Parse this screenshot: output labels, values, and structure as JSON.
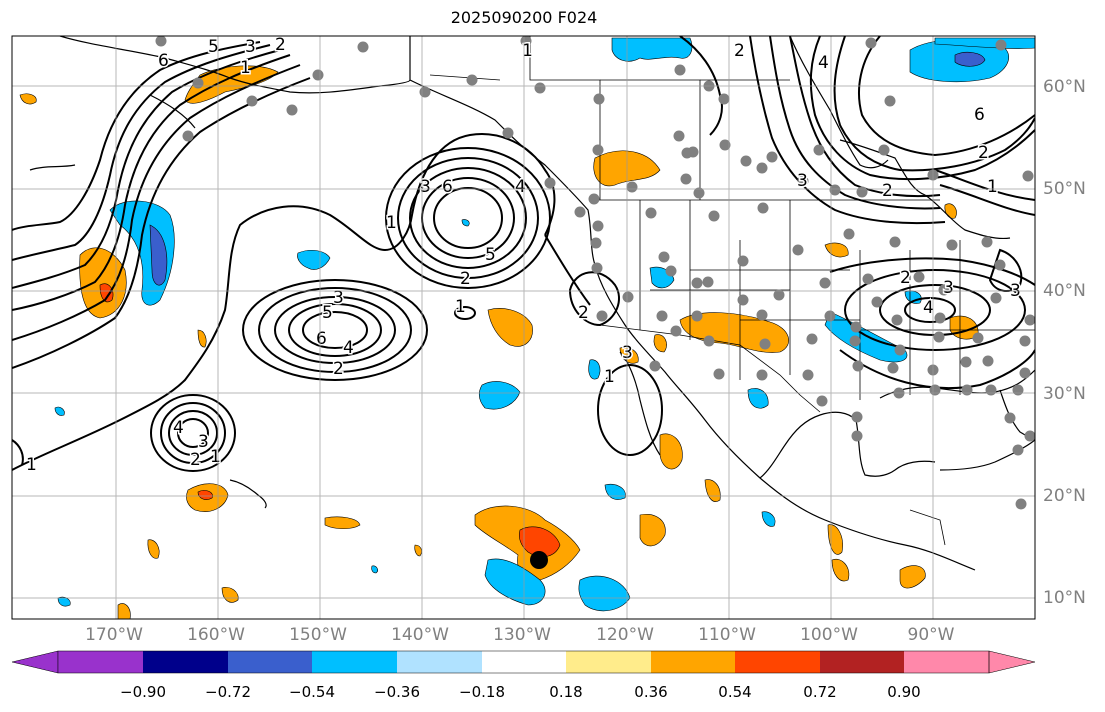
{
  "title": "2025090200 F024",
  "map": {
    "lon_ticks": [
      "170°W",
      "160°W",
      "150°W",
      "140°W",
      "130°W",
      "120°W",
      "110°W",
      "100°W",
      "90°W"
    ],
    "lat_ticks": [
      "60°N",
      "50°N",
      "40°N",
      "30°N",
      "20°N",
      "10°N"
    ],
    "extent": {
      "lon": [
        -180,
        -80
      ],
      "lat": [
        8,
        65
      ]
    },
    "grid": true,
    "marker": {
      "lon": -129,
      "lat": 13.5,
      "type": "storm-center"
    }
  },
  "colorbar": {
    "labels": [
      "−0.90",
      "−0.72",
      "−0.54",
      "−0.36",
      "−0.18",
      "0.18",
      "0.36",
      "0.54",
      "0.72",
      "0.90"
    ],
    "colors": [
      "#9932cc",
      "#00008b",
      "#3a5fcd",
      "#00bfff",
      "#b0e2ff",
      "#ffffff",
      "#ffec8b",
      "#ffa500",
      "#ff4500",
      "#b22222",
      "#ff88aa"
    ]
  },
  "contour_labels": [
    "1",
    "2",
    "3",
    "4",
    "5",
    "6"
  ]
}
